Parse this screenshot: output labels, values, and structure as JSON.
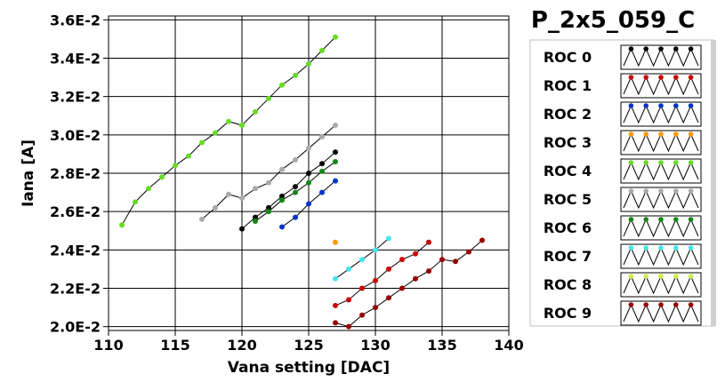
{
  "chart_data": {
    "type": "scatter",
    "title": "P_2x5_059_C",
    "xlabel": "Vana setting [DAC]",
    "ylabel": "Iana [A]",
    "xlim": [
      110,
      140
    ],
    "ylim": [
      0.0198,
      0.0362
    ],
    "x_ticks": [
      110,
      115,
      120,
      125,
      130,
      135,
      140
    ],
    "x_tick_labels": [
      "110",
      "115",
      "120",
      "125",
      "130",
      "135",
      "140"
    ],
    "y_ticks": [
      0.02,
      0.022,
      0.024,
      0.026,
      0.028,
      0.03,
      0.032,
      0.034,
      0.036
    ],
    "y_tick_labels": [
      "2.0E-2",
      "2.2E-2",
      "2.4E-2",
      "2.6E-2",
      "2.8E-2",
      "3.0E-2",
      "3.2E-2",
      "3.4E-2",
      "3.6E-2"
    ],
    "grid": true,
    "legend_position": "right",
    "series": [
      {
        "name": "ROC 0",
        "color": "#000000",
        "x": [
          120,
          121,
          122,
          123,
          124,
          125,
          126,
          127
        ],
        "y": [
          0.0251,
          0.0257,
          0.0262,
          0.0268,
          0.0273,
          0.028,
          0.0285,
          0.0291
        ]
      },
      {
        "name": "ROC 1",
        "color": "#cc0000",
        "x": [
          127,
          128,
          129,
          130,
          131,
          132,
          133,
          134
        ],
        "y": [
          0.0211,
          0.0214,
          0.022,
          0.0224,
          0.023,
          0.0235,
          0.0238,
          0.0244
        ]
      },
      {
        "name": "ROC 2",
        "color": "#0033cc",
        "x": [
          123,
          124,
          125,
          126,
          127
        ],
        "y": [
          0.0252,
          0.0257,
          0.0264,
          0.027,
          0.0276
        ]
      },
      {
        "name": "ROC 3",
        "color": "#ff9900",
        "x": [
          127
        ],
        "y": [
          0.0244
        ]
      },
      {
        "name": "ROC 4",
        "color": "#66dd22",
        "x": [
          111,
          112,
          113,
          114,
          115,
          116,
          117,
          118,
          119,
          120,
          121,
          122,
          123,
          124,
          125,
          126,
          127
        ],
        "y": [
          0.0253,
          0.0265,
          0.0272,
          0.0278,
          0.0284,
          0.0289,
          0.0296,
          0.0301,
          0.0307,
          0.0305,
          0.0312,
          0.0319,
          0.0326,
          0.0331,
          0.0337,
          0.0344,
          0.0351
        ]
      },
      {
        "name": "ROC 5",
        "color": "#aaaaaa",
        "x": [
          117,
          118,
          119,
          120,
          121,
          122,
          123,
          124,
          125,
          126,
          127
        ],
        "y": [
          0.0256,
          0.0262,
          0.0269,
          0.0267,
          0.0272,
          0.0275,
          0.0282,
          0.0287,
          0.0293,
          0.0299,
          0.0305
        ]
      },
      {
        "name": "ROC 6",
        "color": "#118811",
        "x": [
          121,
          122,
          123,
          124,
          125,
          126,
          127
        ],
        "y": [
          0.0255,
          0.026,
          0.0266,
          0.027,
          0.0275,
          0.0281,
          0.0286
        ]
      },
      {
        "name": "ROC 7",
        "color": "#44e6ee",
        "x": [
          127,
          128,
          129,
          130,
          131
        ],
        "y": [
          0.0225,
          0.023,
          0.0235,
          0.024,
          0.0246
        ]
      },
      {
        "name": "ROC 8",
        "color": "#ccee44",
        "x": [],
        "y": []
      },
      {
        "name": "ROC 9",
        "color": "#990000",
        "x": [
          127,
          128,
          129,
          130,
          131,
          132,
          133,
          134,
          135,
          136,
          137,
          138
        ],
        "y": [
          0.0202,
          0.02,
          0.0206,
          0.021,
          0.0215,
          0.022,
          0.0225,
          0.0229,
          0.0235,
          0.0234,
          0.0239,
          0.0245
        ]
      }
    ]
  }
}
